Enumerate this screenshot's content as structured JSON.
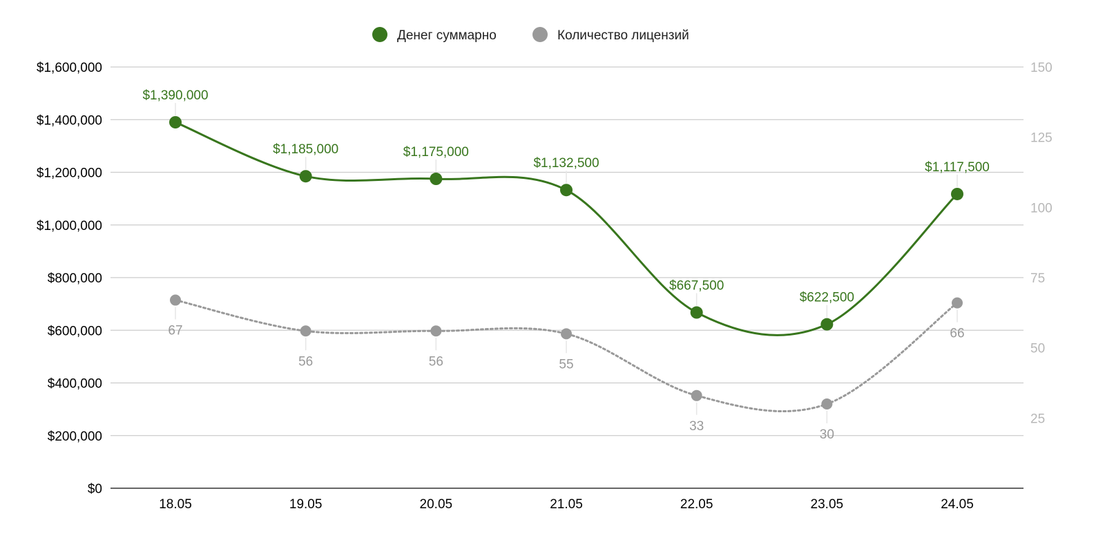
{
  "chart_data": {
    "type": "line",
    "categories": [
      "18.05",
      "19.05",
      "20.05",
      "21.05",
      "22.05",
      "23.05",
      "24.05"
    ],
    "series": [
      {
        "name": "Денег суммарно",
        "axis": "left",
        "color": "#38761d",
        "line_style": "solid smooth",
        "values": [
          1390000,
          1185000,
          1175000,
          1132500,
          667500,
          622500,
          1117500
        ],
        "data_labels": [
          "$1,390,000",
          "$1,185,000",
          "$1,175,000",
          "$1,132,500",
          "$667,500",
          "$622,500",
          "$1,117,500"
        ]
      },
      {
        "name": "Количество лицензий",
        "axis": "right",
        "color": "#999999",
        "line_style": "dotted smooth",
        "values": [
          67,
          56,
          56,
          55,
          33,
          30,
          66
        ],
        "data_labels": [
          "67",
          "56",
          "56",
          "55",
          "33",
          "30",
          "66"
        ]
      }
    ],
    "y_left": {
      "range": [
        0,
        1600000
      ],
      "ticks": [
        0,
        200000,
        400000,
        600000,
        800000,
        1000000,
        1200000,
        1400000,
        1600000
      ],
      "tick_labels": [
        "$0",
        "$200,000",
        "$400,000",
        "$600,000",
        "$800,000",
        "$1,000,000",
        "$1,200,000",
        "$1,400,000",
        "$1,600,000"
      ]
    },
    "y_right": {
      "range": [
        0,
        150
      ],
      "ticks": [
        25,
        50,
        75,
        100,
        125,
        150
      ],
      "tick_labels": [
        "25",
        "50",
        "75",
        "100",
        "125",
        "150"
      ]
    },
    "grid": true,
    "legend_position": "top-center",
    "title": "",
    "xlabel": "",
    "ylabel": ""
  }
}
